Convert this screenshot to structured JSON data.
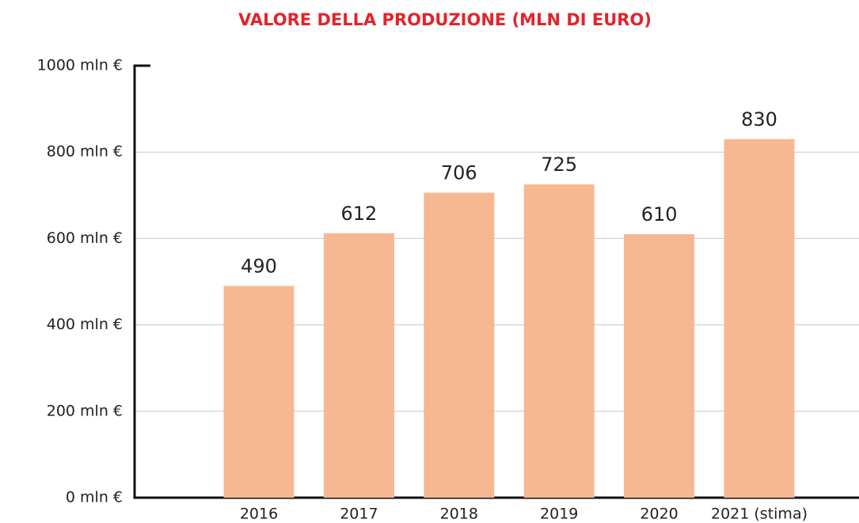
{
  "chart_data": {
    "type": "bar",
    "title": "VALORE DELLA PRODUZIONE (MLN DI EURO)",
    "categories": [
      "2016",
      "2017",
      "2018",
      "2019",
      "2020",
      "2021 (stima)"
    ],
    "values": [
      490,
      612,
      706,
      725,
      610,
      830
    ],
    "color": "#f6b891",
    "ylim": [
      0,
      1000
    ],
    "yticks": [
      {
        "value": 0,
        "label": "0 mln €"
      },
      {
        "value": 200,
        "label": "200 mln €"
      },
      {
        "value": 400,
        "label": "400 mln €"
      },
      {
        "value": 600,
        "label": "600 mln €"
      },
      {
        "value": 800,
        "label": "800 mln €"
      },
      {
        "value": 1000,
        "label": "1000 mln €"
      }
    ],
    "grid": true
  }
}
